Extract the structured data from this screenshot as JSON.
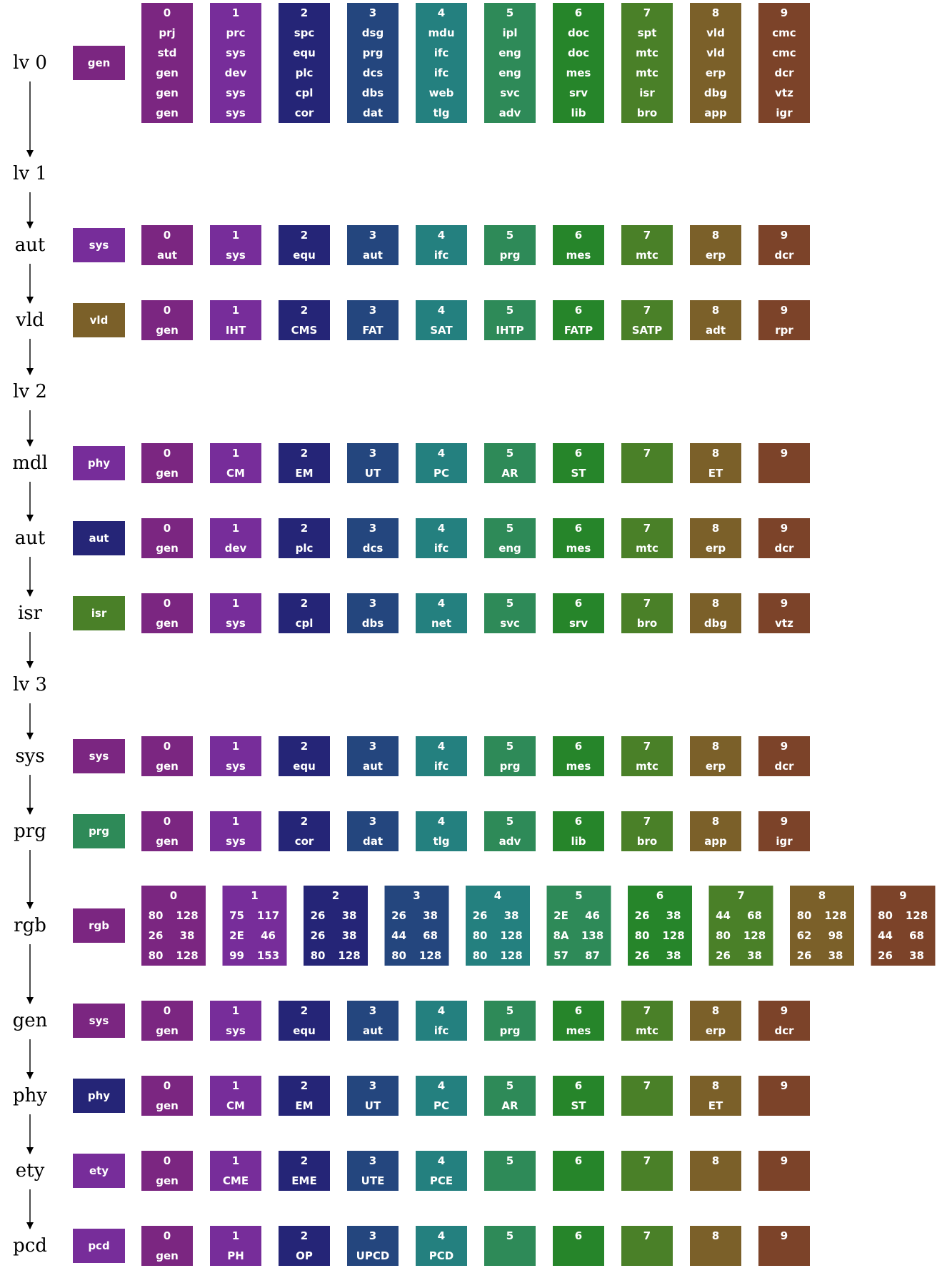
{
  "palette": [
    "#7b2681",
    "#772d9a",
    "#252577",
    "#24467e",
    "#24807f",
    "#2e8a58",
    "#26852a",
    "#4a8028",
    "#7b6029",
    "#7c4329"
  ],
  "rows": [
    {
      "label": "lv 0",
      "tag": {
        "text": "gen",
        "color": 0
      },
      "cells": [
        [
          "0",
          "prj",
          "std",
          "gen",
          "gen",
          "gen"
        ],
        [
          "1",
          "prc",
          "sys",
          "dev",
          "sys",
          "sys"
        ],
        [
          "2",
          "spc",
          "equ",
          "plc",
          "cpl",
          "cor"
        ],
        [
          "3",
          "dsg",
          "prg",
          "dcs",
          "dbs",
          "dat"
        ],
        [
          "4",
          "mdu",
          "ifc",
          "ifc",
          "web",
          "tlg"
        ],
        [
          "5",
          "ipl",
          "eng",
          "eng",
          "svc",
          "adv"
        ],
        [
          "6",
          "doc",
          "doc",
          "mes",
          "srv",
          "lib"
        ],
        [
          "7",
          "spt",
          "mtc",
          "mtc",
          "isr",
          "bro"
        ],
        [
          "8",
          "vld",
          "vld",
          "erp",
          "dbg",
          "app"
        ],
        [
          "9",
          "cmc",
          "cmc",
          "dcr",
          "vtz",
          "igr"
        ]
      ]
    },
    {
      "label": "lv 1"
    },
    {
      "label": "aut",
      "tag": {
        "text": "sys",
        "color": 1
      },
      "cells": [
        [
          "0",
          "aut"
        ],
        [
          "1",
          "sys"
        ],
        [
          "2",
          "equ"
        ],
        [
          "3",
          "aut"
        ],
        [
          "4",
          "ifc"
        ],
        [
          "5",
          "prg"
        ],
        [
          "6",
          "mes"
        ],
        [
          "7",
          "mtc"
        ],
        [
          "8",
          "erp"
        ],
        [
          "9",
          "dcr"
        ]
      ]
    },
    {
      "label": "vld",
      "tag": {
        "text": "vld",
        "color": 8
      },
      "cells": [
        [
          "0",
          "gen"
        ],
        [
          "1",
          "IHT"
        ],
        [
          "2",
          "CMS"
        ],
        [
          "3",
          "FAT"
        ],
        [
          "4",
          "SAT"
        ],
        [
          "5",
          "IHTP"
        ],
        [
          "6",
          "FATP"
        ],
        [
          "7",
          "SATP"
        ],
        [
          "8",
          "adt"
        ],
        [
          "9",
          "rpr"
        ]
      ]
    },
    {
      "label": "lv 2"
    },
    {
      "label": "mdl",
      "tag": {
        "text": "phy",
        "color": 1
      },
      "cells": [
        [
          "0",
          "gen"
        ],
        [
          "1",
          "CM"
        ],
        [
          "2",
          "EM"
        ],
        [
          "3",
          "UT"
        ],
        [
          "4",
          "PC"
        ],
        [
          "5",
          "AR"
        ],
        [
          "6",
          "ST"
        ],
        [
          "7",
          ""
        ],
        [
          "8",
          "ET"
        ],
        [
          "9",
          ""
        ]
      ]
    },
    {
      "label": "aut",
      "tag": {
        "text": "aut",
        "color": 2
      },
      "cells": [
        [
          "0",
          "gen"
        ],
        [
          "1",
          "dev"
        ],
        [
          "2",
          "plc"
        ],
        [
          "3",
          "dcs"
        ],
        [
          "4",
          "ifc"
        ],
        [
          "5",
          "eng"
        ],
        [
          "6",
          "mes"
        ],
        [
          "7",
          "mtc"
        ],
        [
          "8",
          "erp"
        ],
        [
          "9",
          "dcr"
        ]
      ]
    },
    {
      "label": "isr",
      "tag": {
        "text": "isr",
        "color": 7
      },
      "cells": [
        [
          "0",
          "gen"
        ],
        [
          "1",
          "sys"
        ],
        [
          "2",
          "cpl"
        ],
        [
          "3",
          "dbs"
        ],
        [
          "4",
          "net"
        ],
        [
          "5",
          "svc"
        ],
        [
          "6",
          "srv"
        ],
        [
          "7",
          "bro"
        ],
        [
          "8",
          "dbg"
        ],
        [
          "9",
          "vtz"
        ]
      ]
    },
    {
      "label": "lv 3"
    },
    {
      "label": "sys",
      "tag": {
        "text": "sys",
        "color": 0
      },
      "cells": [
        [
          "0",
          "gen"
        ],
        [
          "1",
          "sys"
        ],
        [
          "2",
          "equ"
        ],
        [
          "3",
          "aut"
        ],
        [
          "4",
          "ifc"
        ],
        [
          "5",
          "prg"
        ],
        [
          "6",
          "mes"
        ],
        [
          "7",
          "mtc"
        ],
        [
          "8",
          "erp"
        ],
        [
          "9",
          "dcr"
        ]
      ]
    },
    {
      "label": "prg",
      "tag": {
        "text": "prg",
        "color": 5
      },
      "cells": [
        [
          "0",
          "gen"
        ],
        [
          "1",
          "sys"
        ],
        [
          "2",
          "cor"
        ],
        [
          "3",
          "dat"
        ],
        [
          "4",
          "tlg"
        ],
        [
          "5",
          "adv"
        ],
        [
          "6",
          "lib"
        ],
        [
          "7",
          "bro"
        ],
        [
          "8",
          "app"
        ],
        [
          "9",
          "igr"
        ]
      ]
    },
    {
      "label": "rgb",
      "tag": {
        "text": "rgb",
        "color": 0
      },
      "wide": true,
      "cells": [
        [
          "0",
          "80",
          "128",
          "26",
          "38",
          "80",
          "128"
        ],
        [
          "1",
          "75",
          "117",
          "2E",
          "46",
          "99",
          "153"
        ],
        [
          "2",
          "26",
          "38",
          "26",
          "38",
          "80",
          "128"
        ],
        [
          "3",
          "26",
          "38",
          "44",
          "68",
          "80",
          "128"
        ],
        [
          "4",
          "26",
          "38",
          "80",
          "128",
          "80",
          "128"
        ],
        [
          "5",
          "2E",
          "46",
          "8A",
          "138",
          "57",
          "87"
        ],
        [
          "6",
          "26",
          "38",
          "80",
          "128",
          "26",
          "38"
        ],
        [
          "7",
          "44",
          "68",
          "80",
          "128",
          "26",
          "38"
        ],
        [
          "8",
          "80",
          "128",
          "62",
          "98",
          "26",
          "38"
        ],
        [
          "9",
          "80",
          "128",
          "44",
          "68",
          "26",
          "38"
        ]
      ]
    },
    {
      "label": "gen",
      "tag": {
        "text": "sys",
        "color": 0
      },
      "cells": [
        [
          "0",
          "gen"
        ],
        [
          "1",
          "sys"
        ],
        [
          "2",
          "equ"
        ],
        [
          "3",
          "aut"
        ],
        [
          "4",
          "ifc"
        ],
        [
          "5",
          "prg"
        ],
        [
          "6",
          "mes"
        ],
        [
          "7",
          "mtc"
        ],
        [
          "8",
          "erp"
        ],
        [
          "9",
          "dcr"
        ]
      ]
    },
    {
      "label": "phy",
      "tag": {
        "text": "phy",
        "color": 2
      },
      "cells": [
        [
          "0",
          "gen"
        ],
        [
          "1",
          "CM"
        ],
        [
          "2",
          "EM"
        ],
        [
          "3",
          "UT"
        ],
        [
          "4",
          "PC"
        ],
        [
          "5",
          "AR"
        ],
        [
          "6",
          "ST"
        ],
        [
          "7",
          ""
        ],
        [
          "8",
          "ET"
        ],
        [
          "9",
          ""
        ]
      ]
    },
    {
      "label": "ety",
      "tag": {
        "text": "ety",
        "color": 1
      },
      "cells": [
        [
          "0",
          "gen"
        ],
        [
          "1",
          "CME"
        ],
        [
          "2",
          "EME"
        ],
        [
          "3",
          "UTE"
        ],
        [
          "4",
          "PCE"
        ],
        [
          "5",
          ""
        ],
        [
          "6",
          ""
        ],
        [
          "7",
          ""
        ],
        [
          "8",
          ""
        ],
        [
          "9",
          ""
        ]
      ]
    },
    {
      "label": "pcd",
      "tag": {
        "text": "pcd",
        "color": 1
      },
      "cells": [
        [
          "0",
          "gen"
        ],
        [
          "1",
          "PH"
        ],
        [
          "2",
          "OP"
        ],
        [
          "3",
          "UPCD"
        ],
        [
          "4",
          "PCD"
        ],
        [
          "5",
          ""
        ],
        [
          "6",
          ""
        ],
        [
          "7",
          ""
        ],
        [
          "8",
          ""
        ],
        [
          "9",
          ""
        ]
      ]
    }
  ]
}
